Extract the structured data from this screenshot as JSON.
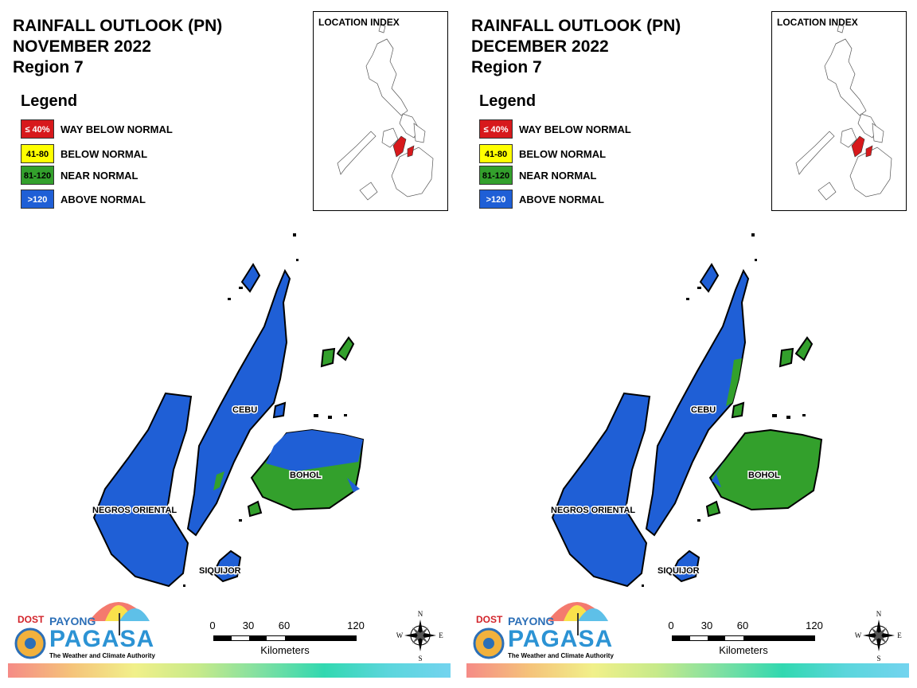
{
  "panels": [
    {
      "title_line1": "RAINFALL OUTLOOK (PN)",
      "title_line2": "NOVEMBER 2022",
      "title_line3": "Region 7",
      "legend_title": "Legend",
      "legend": [
        {
          "code": "≤ 40%",
          "label": "WAY BELOW NORMAL",
          "color": "#d7191c"
        },
        {
          "code": "41-80",
          "label": "BELOW NORMAL",
          "color": "#ffff00"
        },
        {
          "code": "81-120",
          "label": "NEAR NORMAL",
          "color": "#33a02c"
        },
        {
          "code": ">120",
          "label": "ABOVE NORMAL",
          "color": "#1f5fd6"
        }
      ],
      "location_index_title": "LOCATION INDEX",
      "provinces": {
        "cebu": {
          "label": "CEBU",
          "category": "ABOVE NORMAL"
        },
        "bohol": {
          "label": "BOHOL",
          "category": "NEAR NORMAL"
        },
        "negros_oriental": {
          "label": "NEGROS ORIENTAL",
          "category": "ABOVE NORMAL"
        },
        "siquijor": {
          "label": "SIQUIJOR",
          "category": "ABOVE NORMAL"
        }
      },
      "scale": {
        "ticks": [
          "0",
          "30",
          "60",
          "120"
        ],
        "unit": "Kilometers"
      },
      "compass": {
        "n": "N",
        "s": "S",
        "e": "E",
        "w": "W"
      },
      "logo": {
        "dost": "DOST",
        "payong": "PAYONG",
        "pagasa": "PAGASA",
        "tagline": "The Weather and Climate Authority"
      }
    },
    {
      "title_line1": "RAINFALL OUTLOOK (PN)",
      "title_line2": "DECEMBER 2022",
      "title_line3": "Region 7",
      "legend_title": "Legend",
      "legend": [
        {
          "code": "≤ 40%",
          "label": "WAY BELOW NORMAL",
          "color": "#d7191c"
        },
        {
          "code": "41-80",
          "label": "BELOW NORMAL",
          "color": "#ffff00"
        },
        {
          "code": "81-120",
          "label": "NEAR NORMAL",
          "color": "#33a02c"
        },
        {
          "code": ">120",
          "label": "ABOVE NORMAL",
          "color": "#1f5fd6"
        }
      ],
      "location_index_title": "LOCATION INDEX",
      "provinces": {
        "cebu": {
          "label": "CEBU",
          "category": "ABOVE NORMAL"
        },
        "bohol": {
          "label": "BOHOL",
          "category": "NEAR NORMAL"
        },
        "negros_oriental": {
          "label": "NEGROS ORIENTAL",
          "category": "ABOVE NORMAL"
        },
        "siquijor": {
          "label": "SIQUIJOR",
          "category": "ABOVE NORMAL"
        }
      },
      "scale": {
        "ticks": [
          "0",
          "30",
          "60",
          "120"
        ],
        "unit": "Kilometers"
      },
      "compass": {
        "n": "N",
        "s": "S",
        "e": "E",
        "w": "W"
      },
      "logo": {
        "dost": "DOST",
        "payong": "PAYONG",
        "pagasa": "PAGASA",
        "tagline": "The Weather and Climate Authority"
      }
    }
  ],
  "colors": {
    "above_normal": "#1f5fd6",
    "near_normal": "#33a02c",
    "below_normal": "#ffff00",
    "way_below_normal": "#d7191c"
  }
}
